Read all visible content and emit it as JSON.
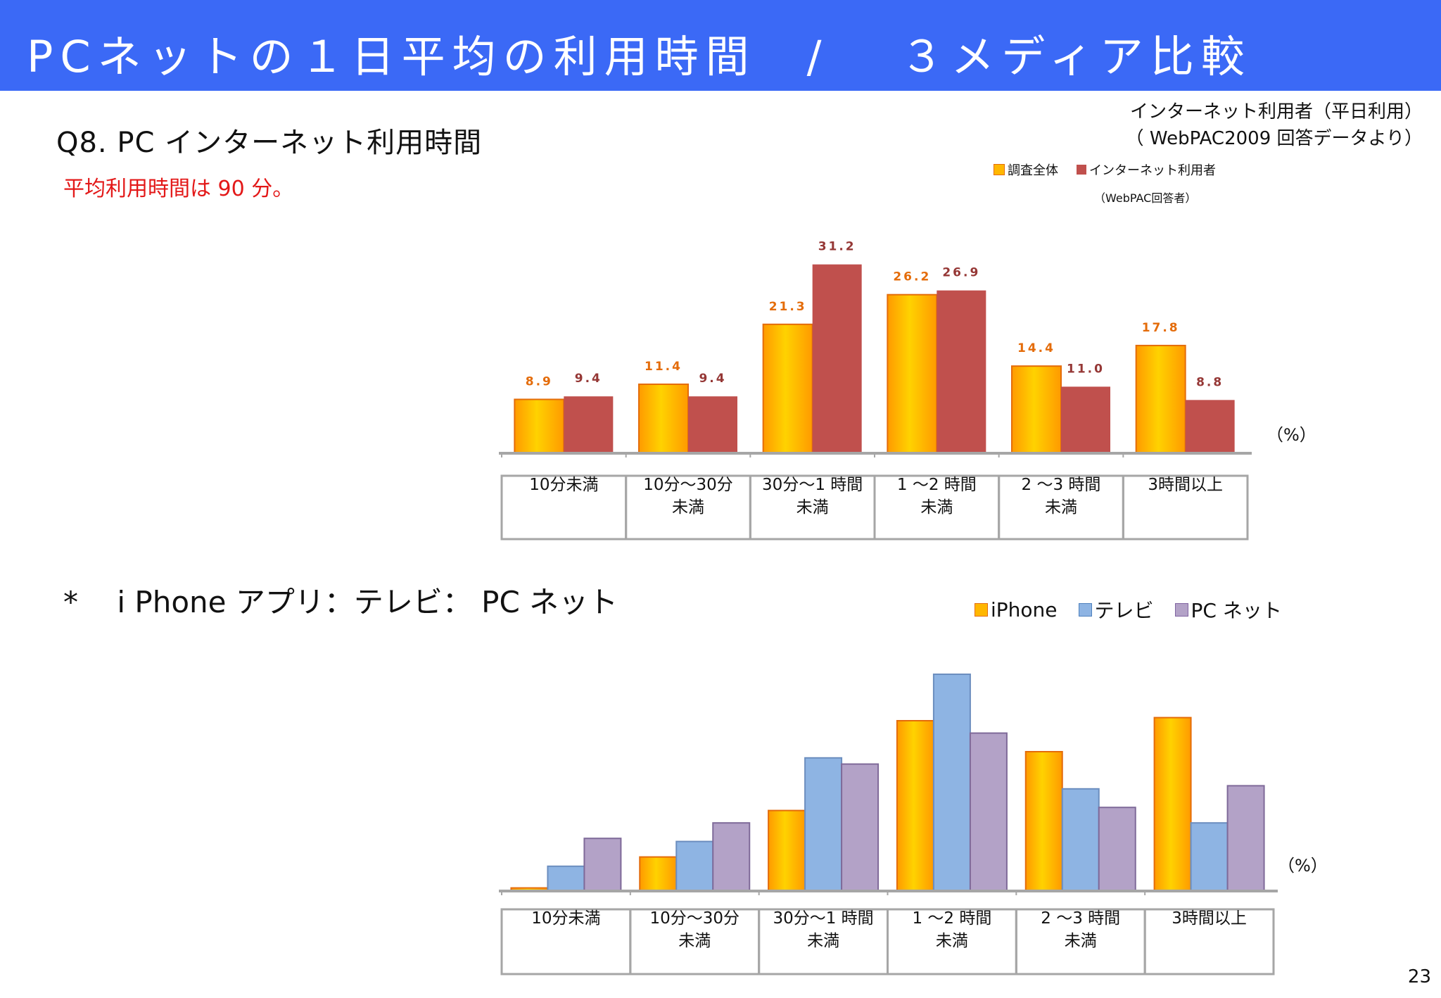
{
  "header": {
    "title": "PCネットの１日平均の利用時間　/　 ３メディア比較"
  },
  "source": {
    "line1": "インターネット利用者（平日利用）",
    "line2": "（ WebPAC2009 回答データより）"
  },
  "question_title": "Q8. PC インターネット利用時間",
  "average_note": "平均利用時間は 90 分。",
  "second_title": "*　 i Phone アプリ：テレビ： PC ネット",
  "page_number": "23",
  "colors": {
    "header": "#3b69f6",
    "orange": "#ffb700",
    "red": "#c0504d",
    "blue": "#8eb4e3",
    "purple": "#b3a2c7",
    "note_red": "#e31818"
  },
  "chart_data": [
    {
      "type": "bar",
      "categories": [
        "10分未満",
        "10分～30分\n未満",
        "30分～1 時間\n未満",
        "1 ～2 時間\n未満",
        "2 ～3 時間\n未満",
        "3時間以上"
      ],
      "series": [
        {
          "name": "調査全体",
          "values": [
            8.9,
            11.4,
            21.3,
            26.2,
            14.4,
            17.8
          ],
          "color": "#ffb700"
        },
        {
          "name": "インターネット利用者",
          "values": [
            9.4,
            9.4,
            31.2,
            26.9,
            11.0,
            8.8
          ],
          "color": "#c0504d"
        }
      ],
      "legend_note": "（WebPAC回答者）",
      "unit_label": "（%）",
      "ylim": [
        0,
        35
      ],
      "data_labels": true
    },
    {
      "type": "bar",
      "categories": [
        "10分未満",
        "10分～30分\n未満",
        "30分～1 時間\n未満",
        "1 ～2 時間\n未満",
        "2 ～3 時間\n未満",
        "3時間以上"
      ],
      "series": [
        {
          "name": "iPhone",
          "values": [
            0.5,
            5.5,
            13.0,
            27.5,
            22.5,
            28.0
          ],
          "color": "#ffb700"
        },
        {
          "name": "テレビ",
          "values": [
            4.0,
            8.0,
            21.5,
            35.0,
            16.5,
            11.0
          ],
          "color": "#8eb4e3"
        },
        {
          "name": "PC ネット",
          "values": [
            8.5,
            11.0,
            20.5,
            25.5,
            13.5,
            17.0
          ],
          "color": "#b3a2c7"
        }
      ],
      "unit_label": "（%）",
      "ylim": [
        0,
        40
      ],
      "data_labels": false
    }
  ]
}
